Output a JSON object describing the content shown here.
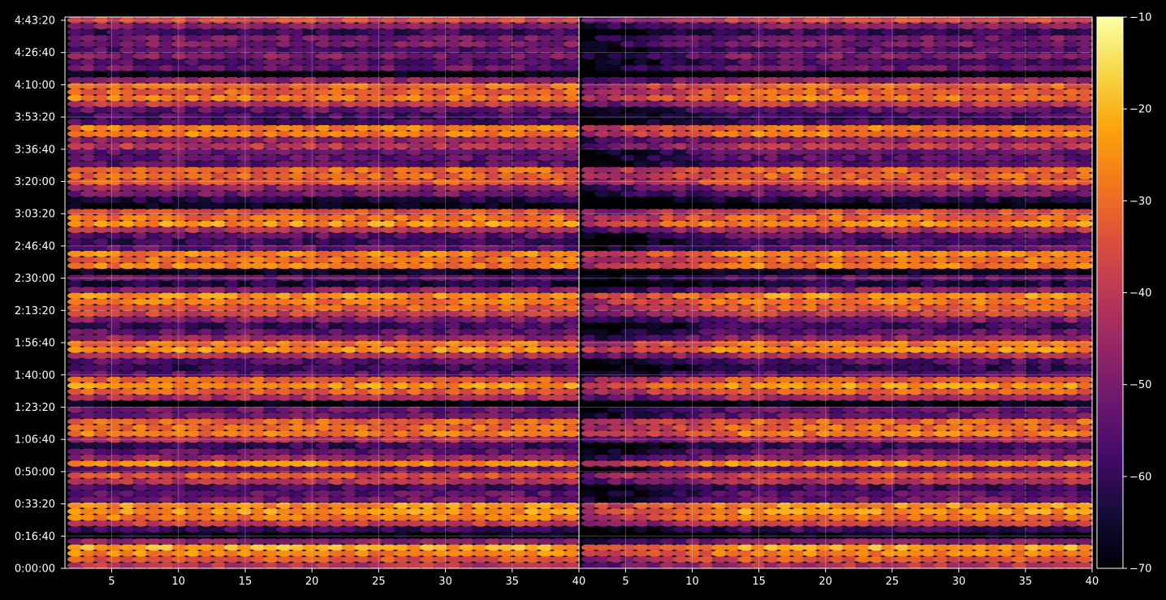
{
  "chart_data": {
    "type": "heatmap",
    "panels": 2,
    "x_ticks": [
      5,
      10,
      15,
      20,
      25,
      30,
      35,
      40
    ],
    "x_range": [
      1.5,
      40
    ],
    "y_range_seconds": [
      0,
      17100
    ],
    "y_ticks": [
      {
        "seconds": 0,
        "label": "0:00:00"
      },
      {
        "seconds": 1000,
        "label": "0:16:40"
      },
      {
        "seconds": 2000,
        "label": "0:33:20"
      },
      {
        "seconds": 3000,
        "label": "0:50:00"
      },
      {
        "seconds": 4000,
        "label": "1:06:40"
      },
      {
        "seconds": 5000,
        "label": "1:23:20"
      },
      {
        "seconds": 6000,
        "label": "1:40:00"
      },
      {
        "seconds": 7000,
        "label": "1:56:40"
      },
      {
        "seconds": 8000,
        "label": "2:13:20"
      },
      {
        "seconds": 9000,
        "label": "2:30:00"
      },
      {
        "seconds": 10000,
        "label": "2:46:40"
      },
      {
        "seconds": 11000,
        "label": "3:03:20"
      },
      {
        "seconds": 12000,
        "label": "3:20:00"
      },
      {
        "seconds": 13000,
        "label": "3:36:40"
      },
      {
        "seconds": 14000,
        "label": "3:53:20"
      },
      {
        "seconds": 15000,
        "label": "4:10:00"
      },
      {
        "seconds": 16000,
        "label": "4:26:40"
      },
      {
        "seconds": 17000,
        "label": "4:43:20"
      }
    ],
    "colorbar": {
      "colormap": "inferno",
      "range": [
        -70,
        -10
      ],
      "ticks": [
        -10,
        -20,
        -30,
        -40,
        -50,
        -60,
        -70
      ]
    },
    "grid": true,
    "background": "#000000"
  }
}
